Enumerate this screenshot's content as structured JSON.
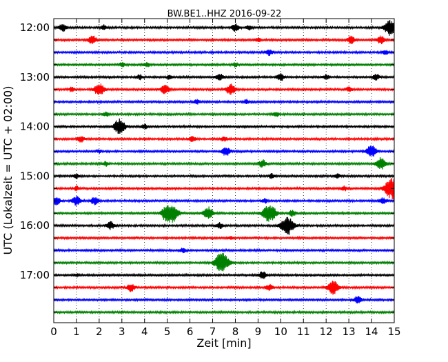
{
  "chart_data": {
    "type": "line",
    "title": "BW.BE1..HHZ 2016-09-22",
    "xlabel": "Zeit  [min]",
    "ylabel": "UTC (Lokalzeit = UTC + 02:00)",
    "xlim": [
      0,
      15
    ],
    "x_ticks": [
      0,
      1,
      2,
      3,
      4,
      5,
      6,
      7,
      8,
      9,
      10,
      11,
      12,
      13,
      14,
      15
    ],
    "x_tick_labels": [
      "0",
      "1",
      "2",
      "3",
      "4",
      "5",
      "6",
      "7",
      "8",
      "9",
      "10",
      "11",
      "12",
      "13",
      "14",
      "15"
    ],
    "y_tick_labels": [
      "12:00",
      "13:00",
      "14:00",
      "15:00",
      "16:00",
      "17:00"
    ],
    "vertical_grid": "dotted",
    "color_cycle": [
      "#000000",
      "#ff0000",
      "#0000ff",
      "#008000"
    ],
    "traces": [
      {
        "start": "12:00",
        "events": [
          [
            0.4,
            0.5
          ],
          [
            2.2,
            0.3
          ],
          [
            8.0,
            0.5
          ],
          [
            8.6,
            0.3
          ],
          [
            14.8,
            1.0
          ]
        ]
      },
      {
        "start": "12:15",
        "events": [
          [
            1.7,
            0.6
          ],
          [
            9.0,
            0.3
          ],
          [
            13.1,
            0.5
          ],
          [
            14.4,
            0.5
          ]
        ]
      },
      {
        "start": "12:30",
        "events": [
          [
            9.5,
            0.4
          ],
          [
            14.6,
            0.3
          ]
        ]
      },
      {
        "start": "12:45",
        "events": [
          [
            3.0,
            0.3
          ],
          [
            4.1,
            0.3
          ],
          [
            8.0,
            0.3
          ]
        ]
      },
      {
        "start": "13:00",
        "events": [
          [
            3.8,
            0.3
          ],
          [
            5.1,
            0.3
          ],
          [
            7.3,
            0.5
          ],
          [
            10.0,
            0.5
          ],
          [
            12.0,
            0.3
          ],
          [
            14.2,
            0.4
          ]
        ]
      },
      {
        "start": "13:15",
        "events": [
          [
            0.8,
            0.3
          ],
          [
            2.0,
            0.8
          ],
          [
            4.9,
            0.6
          ],
          [
            7.8,
            0.7
          ],
          [
            13.0,
            0.3
          ]
        ]
      },
      {
        "start": "13:30",
        "events": [
          [
            6.3,
            0.3
          ],
          [
            8.5,
            0.3
          ]
        ]
      },
      {
        "start": "13:45",
        "events": [
          [
            2.3,
            0.3
          ],
          [
            9.8,
            0.3
          ]
        ]
      },
      {
        "start": "14:00",
        "events": [
          [
            2.9,
            1.0
          ],
          [
            4.0,
            0.3
          ]
        ]
      },
      {
        "start": "14:15",
        "events": [
          [
            1.2,
            0.4
          ],
          [
            6.1,
            0.4
          ],
          [
            7.5,
            0.3
          ]
        ]
      },
      {
        "start": "14:30",
        "events": [
          [
            2.0,
            0.2
          ],
          [
            7.6,
            0.6
          ],
          [
            14.0,
            0.8
          ]
        ]
      },
      {
        "start": "14:45",
        "events": [
          [
            2.3,
            0.3
          ],
          [
            9.2,
            0.5
          ],
          [
            14.4,
            0.8
          ]
        ]
      },
      {
        "start": "15:00",
        "events": [
          [
            1.0,
            0.3
          ],
          [
            9.6,
            0.3
          ],
          [
            12.5,
            0.3
          ]
        ]
      },
      {
        "start": "15:15",
        "events": [
          [
            1.0,
            0.3
          ],
          [
            12.8,
            0.3
          ],
          [
            14.9,
            1.4
          ]
        ]
      },
      {
        "start": "15:30",
        "events": [
          [
            0.1,
            0.6
          ],
          [
            1.0,
            0.6
          ],
          [
            1.8,
            0.5
          ],
          [
            9.3,
            0.3
          ],
          [
            14.5,
            0.4
          ]
        ]
      },
      {
        "start": "15:45",
        "events": [
          [
            4.9,
            0.6
          ],
          [
            5.2,
            1.2
          ],
          [
            6.8,
            0.8
          ],
          [
            9.5,
            1.2
          ],
          [
            10.5,
            0.4
          ]
        ]
      },
      {
        "start": "16:00",
        "events": [
          [
            2.5,
            0.5
          ],
          [
            7.3,
            0.4
          ],
          [
            10.3,
            1.2
          ]
        ]
      },
      {
        "start": "16:15",
        "events": [
          [
            7.8,
            0.2
          ]
        ]
      },
      {
        "start": "16:30",
        "events": [
          [
            5.7,
            0.3
          ]
        ]
      },
      {
        "start": "16:45",
        "events": [
          [
            7.4,
            1.3
          ]
        ]
      },
      {
        "start": "17:00",
        "events": [
          [
            1.0,
            0.2
          ],
          [
            9.2,
            0.5
          ]
        ]
      },
      {
        "start": "17:15",
        "events": [
          [
            3.4,
            0.5
          ],
          [
            9.5,
            0.4
          ],
          [
            12.3,
            0.9
          ]
        ]
      },
      {
        "start": "17:30",
        "events": [
          [
            13.4,
            0.5
          ]
        ]
      },
      {
        "start": "17:45",
        "events": []
      }
    ]
  }
}
